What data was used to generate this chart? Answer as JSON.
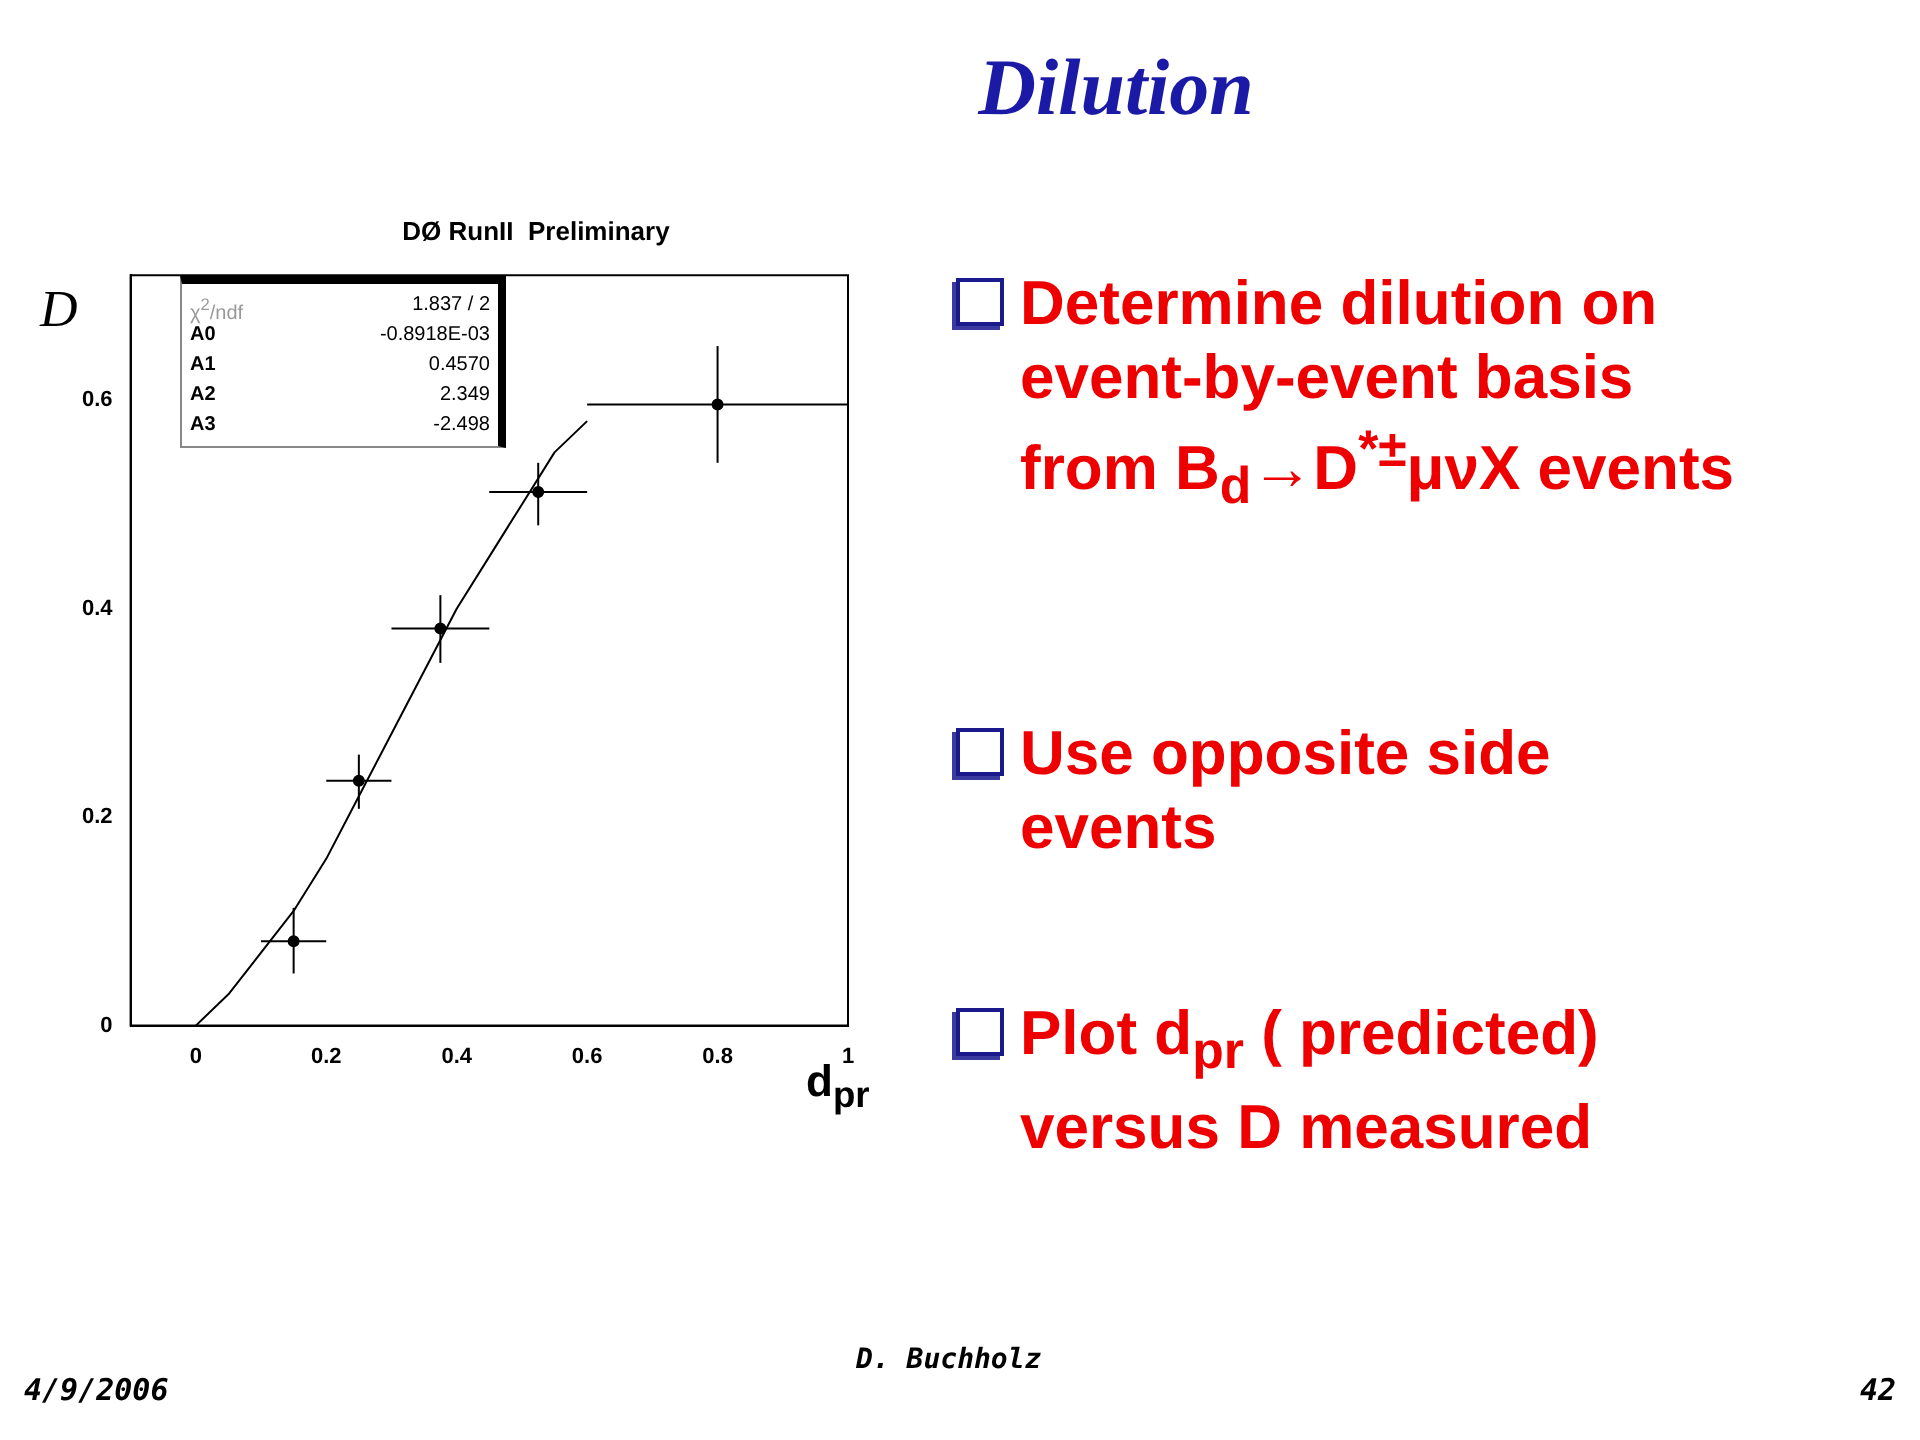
{
  "chart_data": {
    "type": "scatter",
    "title": "Dilution",
    "subtitle": "DØ RunII  Preliminary",
    "xlabel": "d$_{pr}$",
    "ylabel": "D",
    "xlim": [
      -0.1,
      1
    ],
    "xticks": [
      0,
      0.2,
      0.4,
      0.6,
      0.8,
      1
    ],
    "ylim": [
      0,
      0.72
    ],
    "yticks": [
      0,
      0.2,
      0.4,
      0.6
    ],
    "grid": false,
    "series": [
      {
        "marker": "circle",
        "color": "#000000",
        "x": [
          0.15,
          0.25,
          0.375,
          0.525,
          0.8
        ],
        "values": [
          0.081,
          0.235,
          0.381,
          0.512,
          0.596
        ],
        "errors": [
          [
            0.05,
            0.113
          ],
          [
            0.208,
            0.26
          ],
          [
            0.348,
            0.413
          ],
          [
            0.48,
            0.54
          ],
          [
            0.54,
            0.652
          ]
        ],
        "xerrors": [
          [
            0.1,
            0.2
          ],
          [
            0.2,
            0.3
          ],
          [
            0.3,
            0.45
          ],
          [
            0.45,
            0.6
          ],
          [
            0.6,
            1
          ]
        ]
      },
      {
        "type": "line",
        "marker": "none",
        "color": "#000000",
        "x": [
          0,
          0.05,
          0.1,
          0.15,
          0.2,
          0.25,
          0.3,
          0.35,
          0.4,
          0.45,
          0.5,
          0.55,
          0.6
        ],
        "values": [
          0,
          0.03,
          0.07,
          0.11,
          0.16,
          0.22,
          0.28,
          0.34,
          0.4,
          0.45,
          0.5,
          0.55,
          0.58
        ]
      }
    ],
    "annotations": [
      "χ$^{2}$/ndf",
      "1.837  /  2",
      "A0",
      "-0.8918E-03",
      "A1",
      "0.4570",
      "A2",
      "2.349",
      "A3",
      "-2.498",
      "Determine dilution on event-by-event basis from B$_{d}$→D$^{*±}$μνX events",
      "Use opposite side events",
      "Plot d$_{pr}$ ( predicted) versus D measured",
      "4/9/2006",
      "D. Buchholz",
      "42"
    ]
  }
}
